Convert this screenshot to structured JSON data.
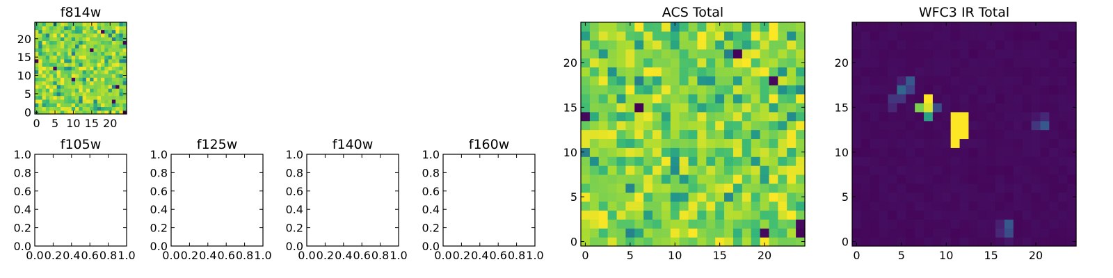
{
  "chart_data": [
    {
      "type": "heatmap",
      "title": "f814w",
      "xlim": [
        -0.5,
        24.5
      ],
      "ylim": [
        -0.5,
        24.5
      ],
      "xticks": [
        0,
        5,
        10,
        15,
        20
      ],
      "yticks": [
        0,
        5,
        10,
        15,
        20
      ],
      "xtick_labels": [
        "0",
        "5",
        "10",
        "15",
        "20"
      ],
      "ytick_labels": [
        "0",
        "5",
        "10",
        "15",
        "20"
      ],
      "colormap": "viridis",
      "image_size": 25,
      "dark_pixels": [
        [
          18,
          22
        ],
        [
          24,
          19
        ],
        [
          0,
          14
        ],
        [
          5,
          12
        ],
        [
          21,
          3
        ],
        [
          24,
          0
        ],
        [
          22,
          7
        ],
        [
          10,
          9
        ],
        [
          15,
          17
        ]
      ],
      "background_level": 0.8
    },
    {
      "type": "empty",
      "title": "f105w",
      "xlim": [
        0,
        1
      ],
      "ylim": [
        0,
        1
      ],
      "xtick_labels": [
        "0.0",
        "0.2",
        "0.4",
        "0.6",
        "0.8",
        "1.0"
      ],
      "ytick_labels": [
        "0.0",
        "0.2",
        "0.4",
        "0.6",
        "0.8",
        "1.0"
      ]
    },
    {
      "type": "empty",
      "title": "f125w",
      "xlim": [
        0,
        1
      ],
      "ylim": [
        0,
        1
      ],
      "xtick_labels": [
        "0.0",
        "0.2",
        "0.4",
        "0.6",
        "0.8",
        "1.0"
      ],
      "ytick_labels": [
        "0.0",
        "0.2",
        "0.4",
        "0.6",
        "0.8",
        "1.0"
      ]
    },
    {
      "type": "empty",
      "title": "f140w",
      "xlim": [
        0,
        1
      ],
      "ylim": [
        0,
        1
      ],
      "xtick_labels": [
        "0.0",
        "0.2",
        "0.4",
        "0.6",
        "0.8",
        "1.0"
      ],
      "ytick_labels": [
        "0.0",
        "0.2",
        "0.4",
        "0.6",
        "0.8",
        "1.0"
      ]
    },
    {
      "type": "empty",
      "title": "f160w",
      "xlim": [
        0,
        1
      ],
      "ylim": [
        0,
        1
      ],
      "xtick_labels": [
        "0.0",
        "0.2",
        "0.4",
        "0.6",
        "0.8",
        "1.0"
      ],
      "ytick_labels": [
        "0.0",
        "0.2",
        "0.4",
        "0.6",
        "0.8",
        "1.0"
      ]
    },
    {
      "type": "heatmap",
      "title": "ACS Total",
      "xlim": [
        -0.5,
        24.5
      ],
      "ylim": [
        -0.5,
        24.5
      ],
      "xticks": [
        0,
        5,
        10,
        15,
        20
      ],
      "yticks": [
        0,
        5,
        10,
        15,
        20
      ],
      "xtick_labels": [
        "0",
        "5",
        "10",
        "15",
        "20"
      ],
      "ytick_labels": [
        "0",
        "5",
        "10",
        "15",
        "20"
      ],
      "colormap": "viridis",
      "image_size": 25,
      "dark_pixels": [
        [
          17,
          21
        ],
        [
          6,
          15
        ],
        [
          0,
          14
        ],
        [
          21,
          18
        ],
        [
          24,
          2
        ],
        [
          24,
          1
        ],
        [
          20,
          1
        ]
      ],
      "background_level": 0.8
    },
    {
      "type": "heatmap",
      "title": "WFC3 IR Total",
      "xlim": [
        -0.5,
        24.5
      ],
      "ylim": [
        -0.5,
        24.5
      ],
      "xticks": [
        0,
        5,
        10,
        15,
        20
      ],
      "yticks": [
        0,
        5,
        10,
        15,
        20
      ],
      "xtick_labels": [
        "0",
        "5",
        "10",
        "15",
        "20"
      ],
      "ytick_labels": [
        "0",
        "5",
        "10",
        "15",
        "20"
      ],
      "colormap": "viridis",
      "image_size": 25,
      "background_level": 0.02,
      "bright_pixels": [
        [
          11,
          14,
          1.0
        ],
        [
          12,
          14,
          1.0
        ],
        [
          11,
          13,
          1.0
        ],
        [
          12,
          13,
          1.0
        ],
        [
          11,
          12,
          1.0
        ],
        [
          12,
          12,
          1.0
        ],
        [
          11,
          11,
          1.0
        ],
        [
          8,
          16,
          1.0
        ],
        [
          8,
          15,
          0.95
        ],
        [
          7,
          15,
          0.8
        ],
        [
          8,
          14,
          0.55
        ],
        [
          9,
          15,
          0.3
        ],
        [
          6,
          18,
          0.35
        ],
        [
          5,
          17,
          0.4
        ],
        [
          6,
          17,
          0.25
        ],
        [
          4,
          16,
          0.2
        ],
        [
          5,
          16,
          0.2
        ],
        [
          4,
          15,
          0.15
        ],
        [
          5,
          18,
          0.12
        ],
        [
          21,
          13,
          0.35
        ],
        [
          20,
          13,
          0.2
        ],
        [
          21,
          14,
          0.15
        ],
        [
          20,
          14,
          0.08
        ],
        [
          17,
          2,
          0.35
        ],
        [
          17,
          1,
          0.3
        ],
        [
          16,
          1,
          0.15
        ],
        [
          16,
          2,
          0.12
        ],
        [
          17,
          0,
          0.08
        ]
      ]
    }
  ]
}
